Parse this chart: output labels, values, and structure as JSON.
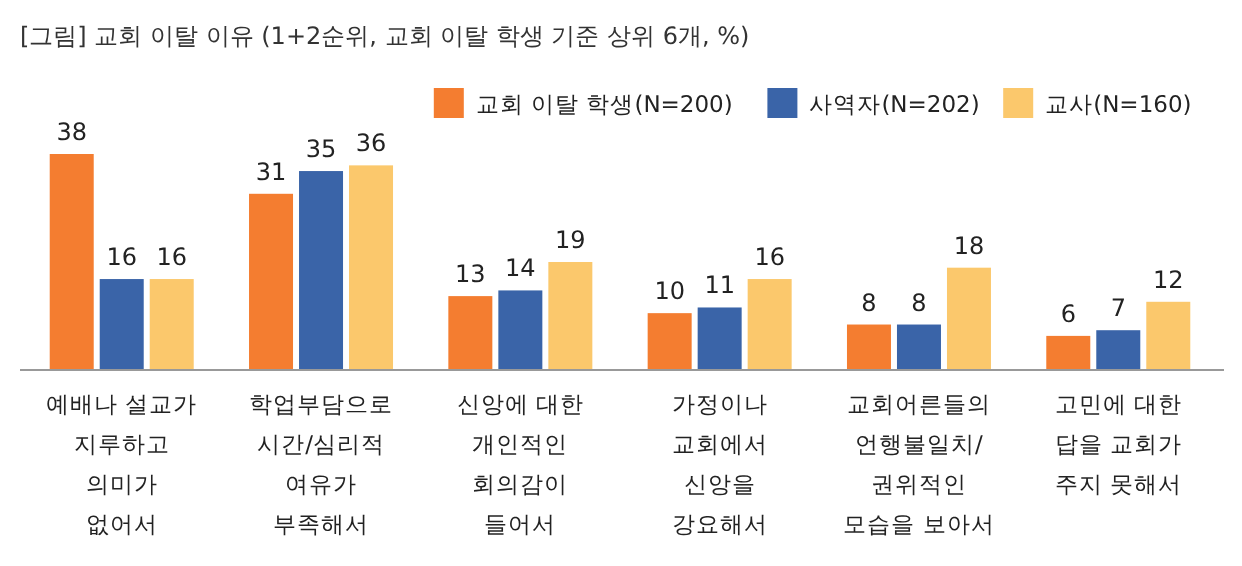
{
  "chart_data": {
    "type": "bar",
    "title": "[그림] 교회 이탈 이유 (1+2순위, 교회 이탈 학생 기준 상위 6개, %)",
    "categories": [
      "예배나 설교가\n지루하고\n의미가\n없어서",
      "학업부담으로\n시간/심리적\n여유가\n부족해서",
      "신앙에 대한\n개인적인\n회의감이\n들어서",
      "가정이나\n교회에서\n신앙을\n강요해서",
      "교회어른들의\n언행불일치/\n권위적인\n모습을 보아서",
      "고민에 대한\n답을 교회가\n주지 못해서"
    ],
    "series": [
      {
        "name": "교회 이탈 학생(N=200)",
        "color": "#f47d30",
        "values": [
          38,
          31,
          13,
          10,
          8,
          6
        ]
      },
      {
        "name": "사역자(N=202)",
        "color": "#3a64a8",
        "values": [
          16,
          35,
          14,
          11,
          8,
          7
        ]
      },
      {
        "name": "교사(N=160)",
        "color": "#fbc86c",
        "values": [
          16,
          36,
          19,
          16,
          18,
          12
        ]
      }
    ],
    "data_labels": true,
    "legend": "top right"
  }
}
